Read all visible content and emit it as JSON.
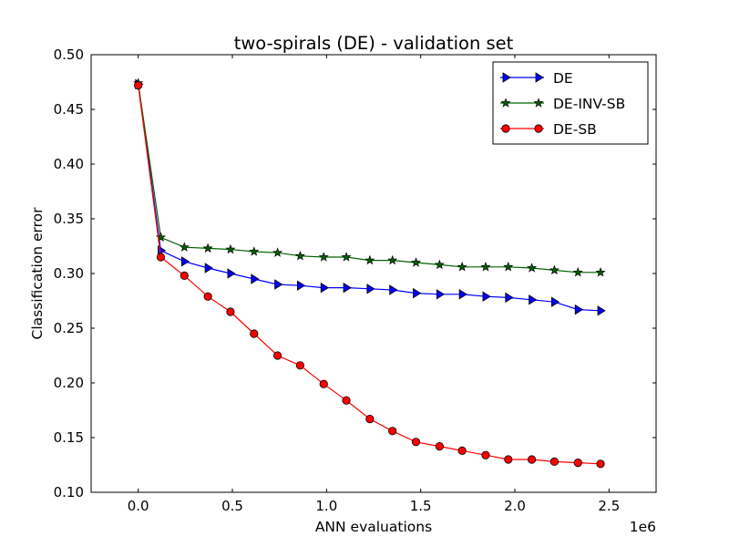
{
  "chart_data": {
    "type": "line",
    "title": "two-spirals (DE) - validation set",
    "xlabel": "ANN evaluations",
    "ylabel": "Classification error",
    "x_offset_label": "1e6",
    "xlim": [
      -0.25,
      2.75
    ],
    "ylim": [
      0.1,
      0.5
    ],
    "xticks": [
      0.0,
      0.5,
      1.0,
      1.5,
      2.0,
      2.5
    ],
    "xtick_labels": [
      "0.0",
      "0.5",
      "1.0",
      "1.5",
      "2.0",
      "2.5"
    ],
    "yticks": [
      0.1,
      0.15,
      0.2,
      0.25,
      0.3,
      0.35,
      0.4,
      0.45,
      0.5
    ],
    "ytick_labels": [
      "0.10",
      "0.15",
      "0.20",
      "0.25",
      "0.30",
      "0.35",
      "0.40",
      "0.45",
      "0.50"
    ],
    "grid": false,
    "legend_position": "top-right",
    "x": [
      0.0,
      0.12,
      0.245,
      0.37,
      0.49,
      0.615,
      0.74,
      0.86,
      0.985,
      1.105,
      1.23,
      1.35,
      1.475,
      1.6,
      1.72,
      1.845,
      1.965,
      2.09,
      2.21,
      2.335,
      2.455
    ],
    "series": [
      {
        "name": "DE",
        "marker": "triangle-right",
        "color": "#0000ff",
        "values": [
          0.473,
          0.321,
          0.311,
          0.305,
          0.3,
          0.295,
          0.29,
          0.289,
          0.287,
          0.287,
          0.286,
          0.285,
          0.282,
          0.281,
          0.281,
          0.279,
          0.278,
          0.276,
          0.274,
          0.267,
          0.266
        ]
      },
      {
        "name": "DE-INV-SB",
        "marker": "star",
        "color": "#006400",
        "values": [
          0.474,
          0.333,
          0.324,
          0.323,
          0.322,
          0.32,
          0.319,
          0.316,
          0.315,
          0.315,
          0.312,
          0.312,
          0.31,
          0.308,
          0.306,
          0.306,
          0.306,
          0.305,
          0.303,
          0.301,
          0.301
        ]
      },
      {
        "name": "DE-SB",
        "marker": "circle",
        "color": "#ff0000",
        "values": [
          0.472,
          0.315,
          0.298,
          0.279,
          0.265,
          0.245,
          0.225,
          0.216,
          0.199,
          0.184,
          0.167,
          0.156,
          0.146,
          0.142,
          0.138,
          0.134,
          0.13,
          0.13,
          0.128,
          0.127,
          0.126
        ]
      }
    ]
  }
}
